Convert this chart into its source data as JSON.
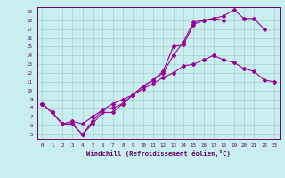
{
  "title": "",
  "xlabel": "Windchill (Refroidissement éolien,°C)",
  "bg_color": "#c8eef0",
  "line_color": "#990099",
  "grid_color": "#aacccc",
  "axis_color": "#660066",
  "text_color": "#660066",
  "xlim": [
    -0.5,
    23.5
  ],
  "ylim": [
    4.5,
    19.5
  ],
  "xticks": [
    0,
    1,
    2,
    3,
    4,
    5,
    6,
    7,
    8,
    9,
    10,
    11,
    12,
    13,
    14,
    15,
    16,
    17,
    18,
    19,
    20,
    21,
    22,
    23
  ],
  "yticks": [
    5,
    6,
    7,
    8,
    9,
    10,
    11,
    12,
    13,
    14,
    15,
    16,
    17,
    18,
    19
  ],
  "line1_x": [
    0,
    1,
    2,
    3,
    4,
    5,
    6,
    7,
    8,
    9,
    10,
    11,
    12,
    13,
    14,
    15,
    16,
    17,
    18,
    19,
    20,
    21,
    22
  ],
  "line1_y": [
    8.5,
    7.5,
    6.2,
    6.2,
    5.0,
    6.2,
    7.5,
    7.5,
    8.5,
    9.5,
    10.5,
    11.2,
    12.2,
    15.0,
    15.2,
    17.5,
    18.0,
    18.2,
    18.5,
    19.2,
    18.2,
    18.2,
    17.0
  ],
  "line2_x": [
    0,
    1,
    2,
    3,
    4,
    5,
    6,
    7,
    8,
    9,
    10,
    11,
    12,
    13,
    14,
    15,
    16,
    17,
    18
  ],
  "line2_y": [
    8.5,
    7.5,
    6.2,
    6.2,
    5.0,
    6.5,
    7.8,
    8.0,
    8.5,
    9.5,
    10.5,
    11.2,
    12.0,
    14.0,
    15.5,
    17.8,
    18.0,
    18.2,
    18.0
  ],
  "line3_x": [
    0,
    1,
    2,
    3,
    4,
    5,
    6,
    7,
    8,
    9,
    10,
    11,
    12,
    13,
    14,
    15,
    16,
    17,
    18,
    19,
    20,
    21,
    22,
    23
  ],
  "line3_y": [
    8.5,
    7.5,
    6.2,
    6.5,
    6.2,
    7.0,
    7.8,
    8.5,
    9.0,
    9.5,
    10.2,
    10.8,
    11.5,
    12.0,
    12.8,
    13.0,
    13.5,
    14.0,
    13.5,
    13.2,
    12.5,
    12.2,
    11.2,
    11.0
  ]
}
